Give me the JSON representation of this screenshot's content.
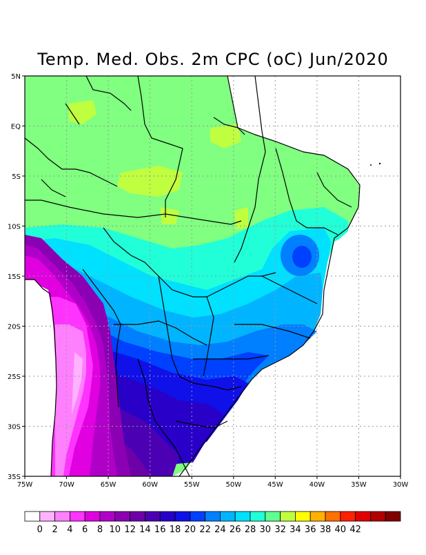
{
  "title": "Temp. Med. Obs. 2m CPC (oC) Jun/2020",
  "map": {
    "lat_labels": [
      "5N",
      "EQ",
      "5S",
      "10S",
      "15S",
      "20S",
      "25S",
      "30S",
      "35S"
    ],
    "lon_labels": [
      "75W",
      "70W",
      "65W",
      "60W",
      "55W",
      "50W",
      "45W",
      "40W",
      "35W",
      "30W"
    ],
    "lat_range": [
      -35,
      5
    ],
    "lon_range": [
      -75,
      -30
    ],
    "field": "Mean observed 2m temperature",
    "units": "oC"
  },
  "colorbar": {
    "tick_labels": [
      "0",
      "2",
      "4",
      "6",
      "8",
      "10",
      "12",
      "14",
      "16",
      "18",
      "20",
      "22",
      "24",
      "26",
      "28",
      "30",
      "32",
      "34",
      "36",
      "38",
      "40",
      "42"
    ],
    "colors": [
      "#ffffff",
      "#ffb3ff",
      "#ff80ff",
      "#ff33ff",
      "#e000e0",
      "#b000c8",
      "#8c00b4",
      "#6e00a8",
      "#4c00b4",
      "#2800c8",
      "#1010e8",
      "#0040ff",
      "#0080ff",
      "#00b4ff",
      "#00e0ff",
      "#20ffd8",
      "#60ff90",
      "#c0ff40",
      "#ffff00",
      "#ffb000",
      "#ff7000",
      "#ff2000",
      "#e00000",
      "#b00000",
      "#800000"
    ]
  }
}
